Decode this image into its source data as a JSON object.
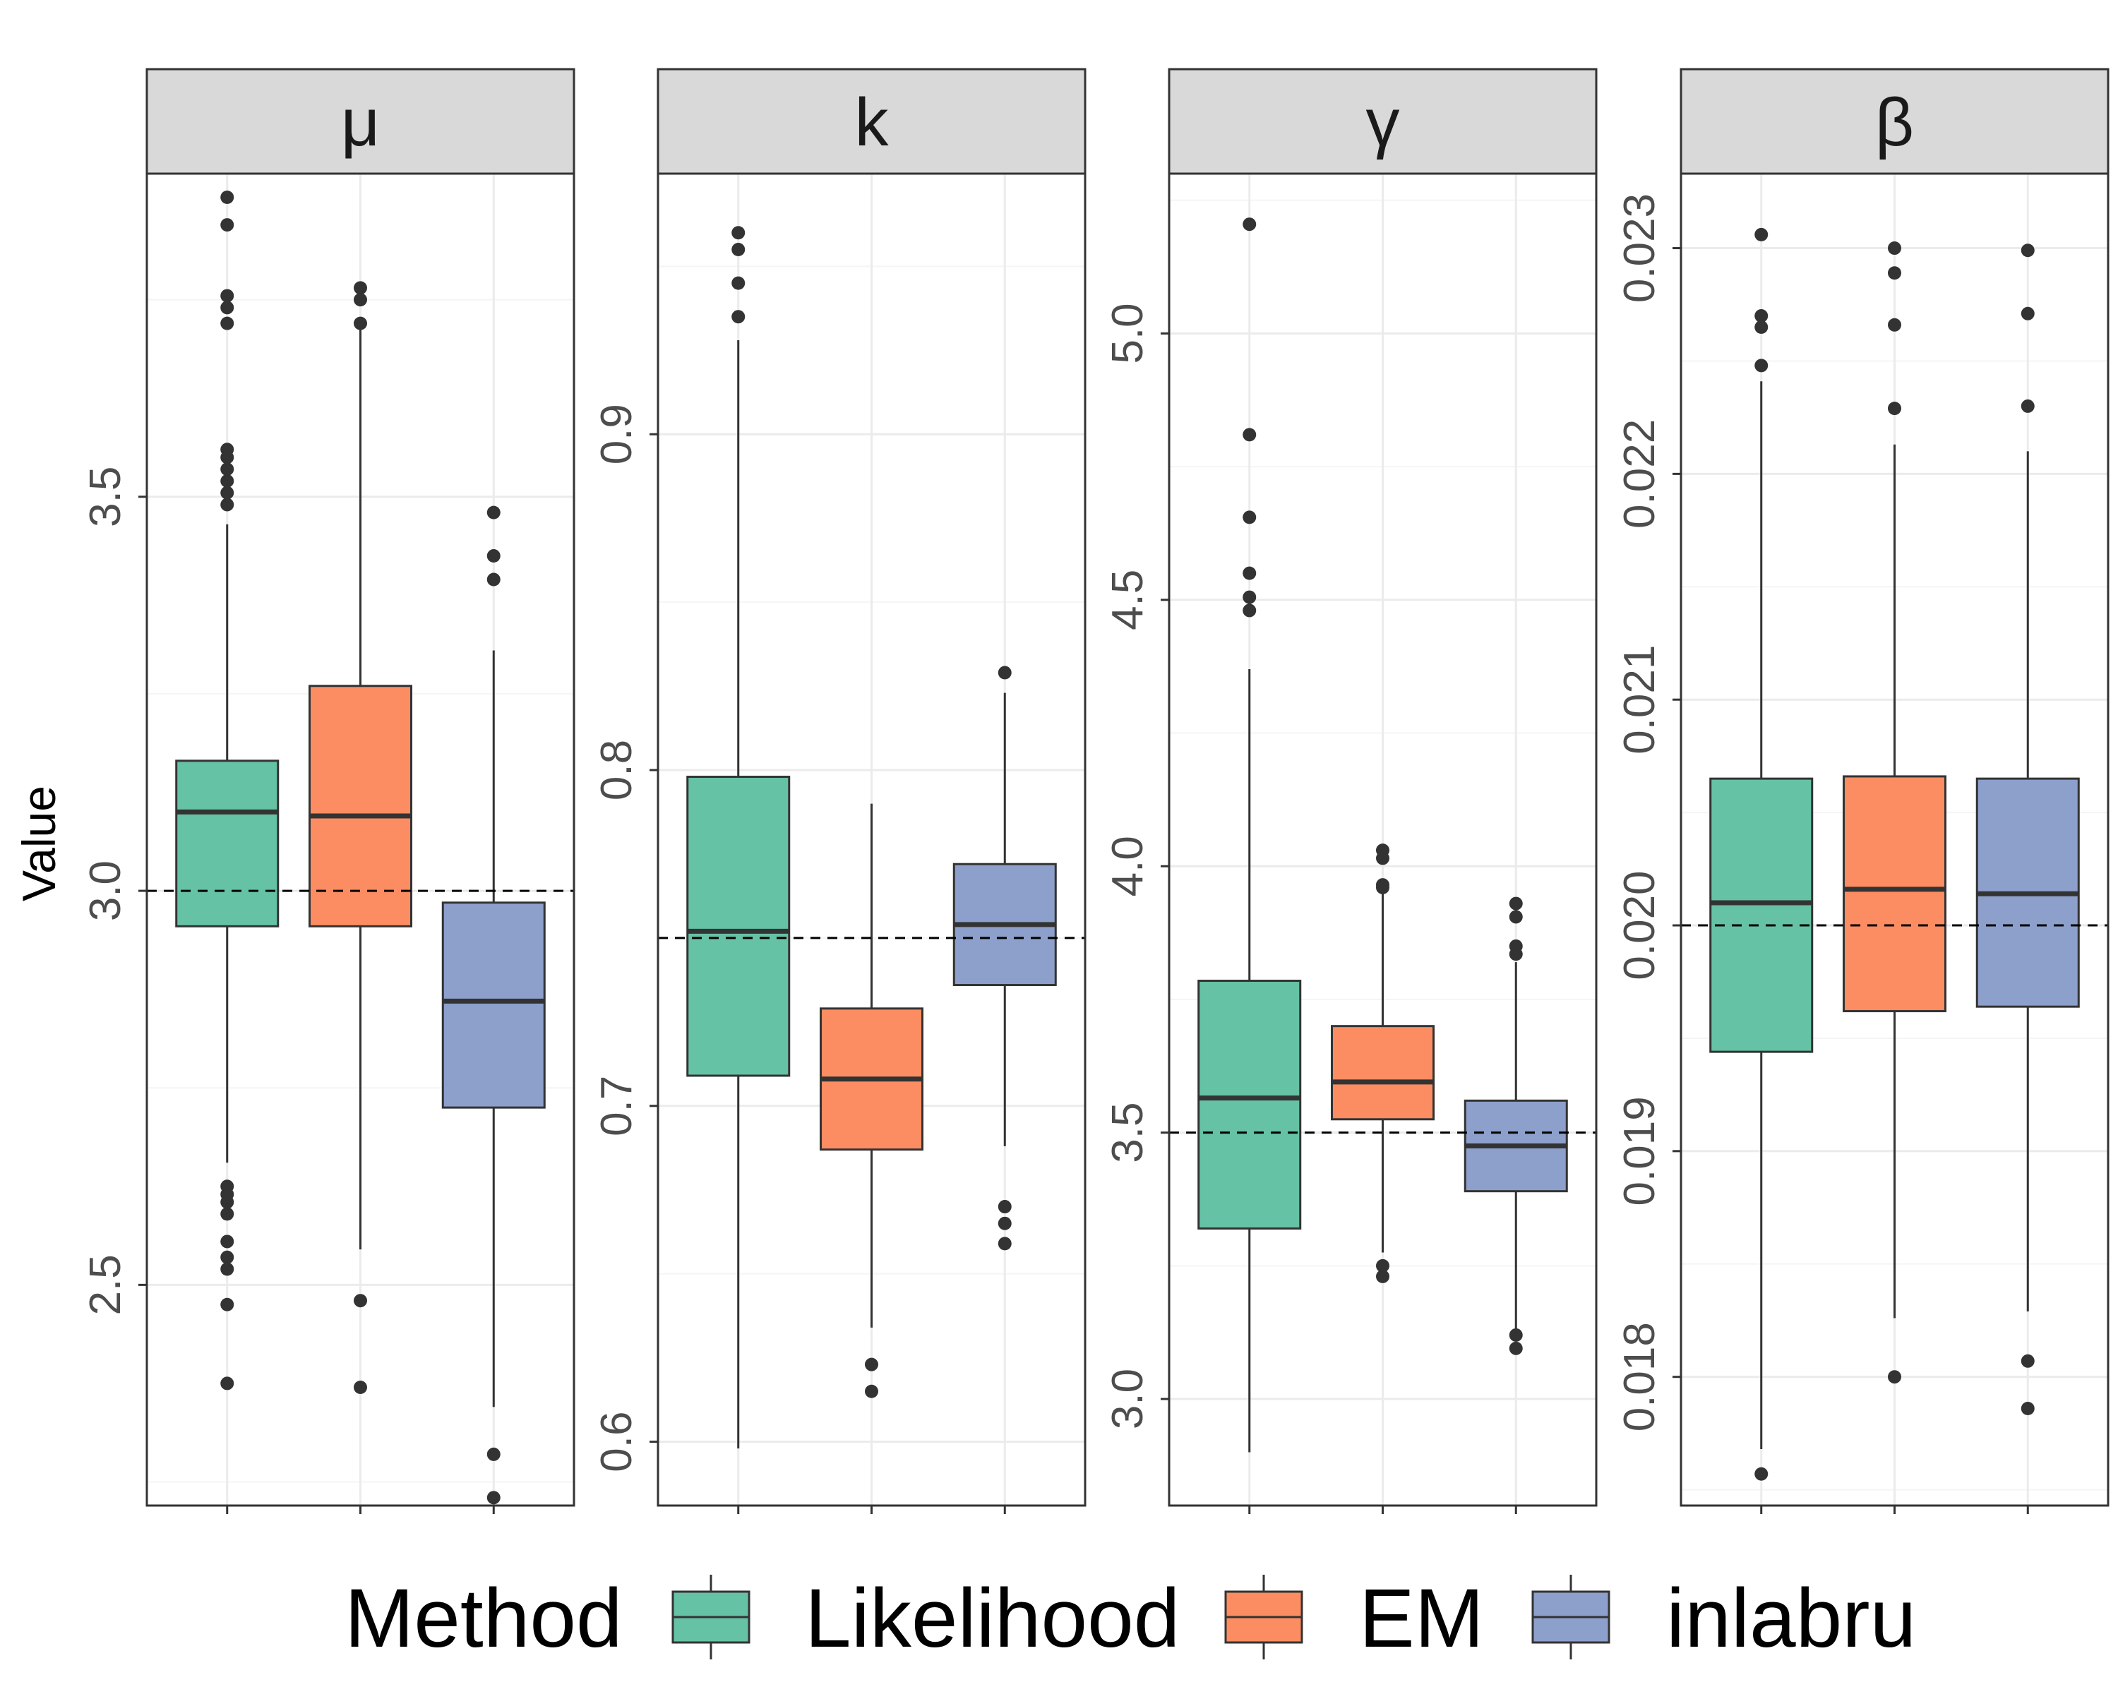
{
  "chart_data": {
    "type": "boxplot",
    "y_axis_title": "Value",
    "legend": {
      "title": "Method",
      "position": "bottom",
      "entries": [
        {
          "label": "Likelihood",
          "color": "#66C2A5"
        },
        {
          "label": "EM",
          "color": "#FC8D62"
        },
        {
          "label": "inlabru",
          "color": "#8DA0CB"
        }
      ]
    },
    "colors": {
      "strip_background": "#D9D9D9",
      "panel_border": "#333333",
      "grid_major": "#EBEBEB",
      "grid_minor": "#F5F5F5",
      "box_line": "#333333",
      "reference_line": "#000000"
    },
    "facets": [
      {
        "strip_label": "μ",
        "ylim": [
          2.22,
          3.91
        ],
        "true_value": 3.0,
        "ticks": [
          {
            "value": 2.5,
            "label": "2.5"
          },
          {
            "value": 3.0,
            "label": "3.0"
          },
          {
            "value": 3.5,
            "label": "3.5"
          }
        ],
        "minor_ticks": [
          2.25,
          2.75,
          3.25,
          3.75
        ],
        "boxes": [
          {
            "method": "Likelihood",
            "q1": 2.955,
            "median": 3.1,
            "q3": 3.165,
            "whisker_low": 2.655,
            "whisker_high": 3.465,
            "outliers": [
              3.88,
              3.845,
              3.755,
              3.74,
              3.72,
              3.56,
              3.55,
              3.535,
              3.52,
              3.505,
              3.49,
              2.625,
              2.615,
              2.605,
              2.59,
              2.555,
              2.535,
              2.52,
              2.475,
              2.375
            ]
          },
          {
            "method": "EM",
            "q1": 2.955,
            "median": 3.095,
            "q3": 3.26,
            "whisker_low": 2.545,
            "whisker_high": 3.72,
            "outliers": [
              3.765,
              3.75,
              3.72,
              2.48,
              2.37
            ]
          },
          {
            "method": "inlabru",
            "q1": 2.725,
            "median": 2.86,
            "q3": 2.985,
            "whisker_low": 2.345,
            "whisker_high": 3.305,
            "outliers": [
              3.48,
              3.425,
              3.395,
              2.285,
              2.23
            ]
          }
        ]
      },
      {
        "strip_label": "k",
        "ylim": [
          0.581,
          0.9776
        ],
        "true_value": 0.75,
        "ticks": [
          {
            "value": 0.6,
            "label": "0.6"
          },
          {
            "value": 0.7,
            "label": "0.7"
          },
          {
            "value": 0.8,
            "label": "0.8"
          },
          {
            "value": 0.9,
            "label": "0.9"
          }
        ],
        "minor_ticks": [
          0.65,
          0.75,
          0.85,
          0.95
        ],
        "boxes": [
          {
            "method": "Likelihood",
            "q1": 0.709,
            "median": 0.752,
            "q3": 0.798,
            "whisker_low": 0.598,
            "whisker_high": 0.928,
            "outliers": [
              0.96,
              0.955,
              0.945,
              0.935
            ]
          },
          {
            "method": "EM",
            "q1": 0.687,
            "median": 0.708,
            "q3": 0.729,
            "whisker_low": 0.634,
            "whisker_high": 0.79,
            "outliers": [
              0.623,
              0.615
            ]
          },
          {
            "method": "inlabru",
            "q1": 0.736,
            "median": 0.754,
            "q3": 0.772,
            "whisker_low": 0.688,
            "whisker_high": 0.823,
            "outliers": [
              0.829,
              0.67,
              0.665,
              0.659
            ]
          }
        ]
      },
      {
        "strip_label": "γ",
        "ylim": [
          2.8,
          5.3
        ],
        "true_value": 3.5,
        "ticks": [
          {
            "value": 3.0,
            "label": "3.0"
          },
          {
            "value": 3.5,
            "label": "3.5"
          },
          {
            "value": 4.0,
            "label": "4.0"
          },
          {
            "value": 4.5,
            "label": "4.5"
          },
          {
            "value": 5.0,
            "label": "5.0"
          }
        ],
        "minor_ticks": [
          3.25,
          3.75,
          4.25,
          4.75,
          5.25
        ],
        "boxes": [
          {
            "method": "Likelihood",
            "q1": 3.32,
            "median": 3.565,
            "q3": 3.785,
            "whisker_low": 2.9,
            "whisker_high": 4.37,
            "outliers": [
              5.205,
              4.81,
              4.655,
              4.55,
              4.505,
              4.48
            ]
          },
          {
            "method": "EM",
            "q1": 3.525,
            "median": 3.595,
            "q3": 3.7,
            "whisker_low": 3.275,
            "whisker_high": 3.97,
            "outliers": [
              4.03,
              4.015,
              3.965,
              3.96,
              3.25,
              3.23
            ]
          },
          {
            "method": "inlabru",
            "q1": 3.39,
            "median": 3.475,
            "q3": 3.56,
            "whisker_low": 3.125,
            "whisker_high": 3.82,
            "outliers": [
              3.93,
              3.905,
              3.85,
              3.835,
              3.12,
              3.095
            ]
          }
        ]
      },
      {
        "strip_label": "β",
        "ylim": [
          0.01743,
          0.02333
        ],
        "true_value": 0.02,
        "ticks": [
          {
            "value": 0.018,
            "label": "0.018"
          },
          {
            "value": 0.019,
            "label": "0.019"
          },
          {
            "value": 0.02,
            "label": "0.020"
          },
          {
            "value": 0.021,
            "label": "0.021"
          },
          {
            "value": 0.022,
            "label": "0.022"
          },
          {
            "value": 0.023,
            "label": "0.023"
          }
        ],
        "minor_ticks": [
          0.0175,
          0.0185,
          0.0195,
          0.0205,
          0.0215,
          0.0225
        ],
        "boxes": [
          {
            "method": "Likelihood",
            "q1": 0.01944,
            "median": 0.0201,
            "q3": 0.02065,
            "whisker_low": 0.01768,
            "whisker_high": 0.02241,
            "outliers": [
              0.02306,
              0.0227,
              0.02265,
              0.02248,
              0.01757
            ]
          },
          {
            "method": "EM",
            "q1": 0.01962,
            "median": 0.02016,
            "q3": 0.02066,
            "whisker_low": 0.01826,
            "whisker_high": 0.02213,
            "outliers": [
              0.023,
              0.02289,
              0.02266,
              0.02229,
              0.018
            ]
          },
          {
            "method": "inlabru",
            "q1": 0.01964,
            "median": 0.02014,
            "q3": 0.02065,
            "whisker_low": 0.01829,
            "whisker_high": 0.0221,
            "outliers": [
              0.02299,
              0.02271,
              0.0223,
              0.01807,
              0.01786
            ]
          }
        ]
      }
    ]
  }
}
